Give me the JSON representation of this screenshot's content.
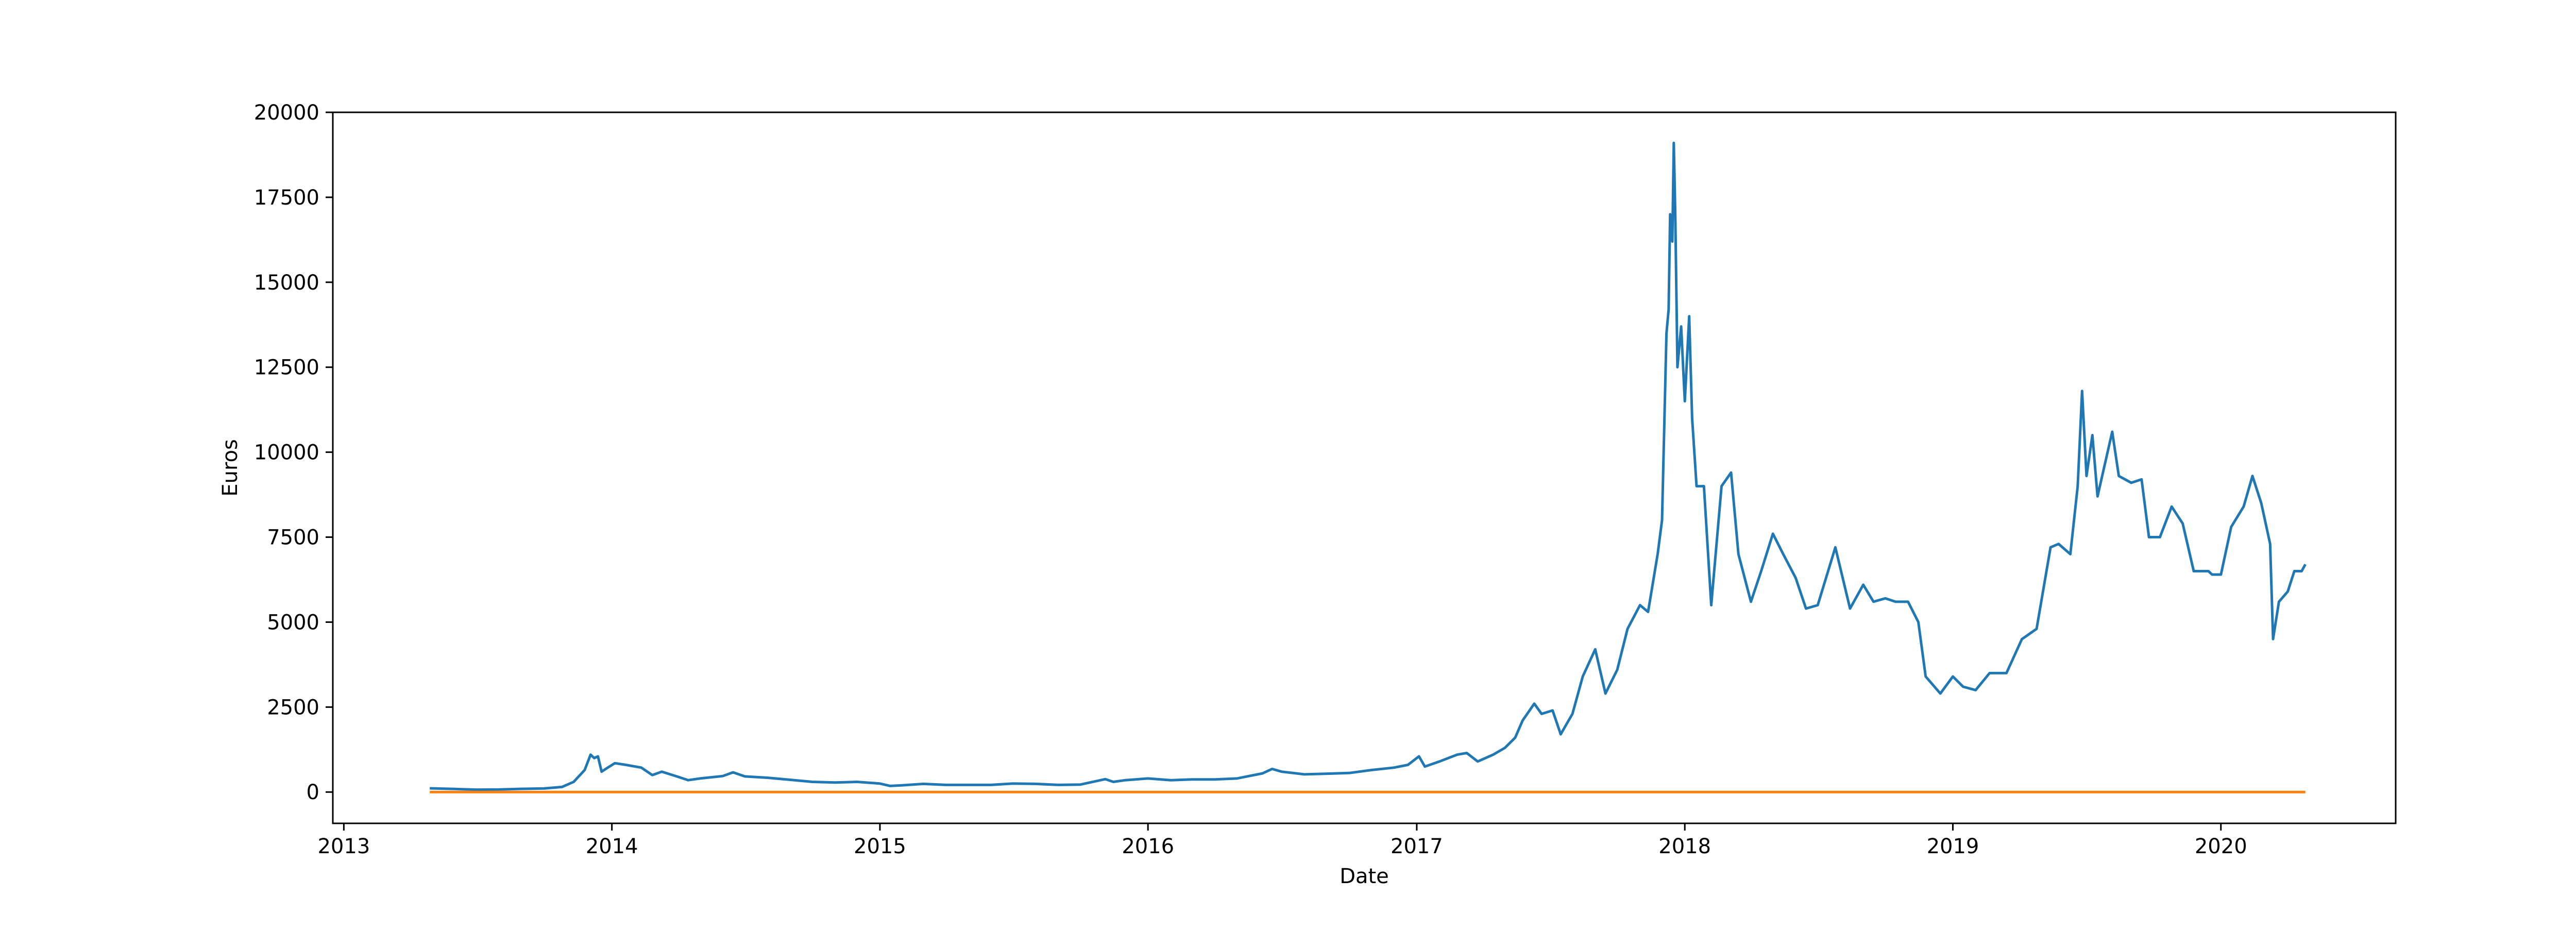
{
  "chart_data": {
    "type": "line",
    "title": "",
    "xlabel": "Date",
    "ylabel": "Euros",
    "x_axis_type": "date",
    "xlim": [
      "2012-12-17",
      "2020-08-26"
    ],
    "ylim": [
      -921,
      20000
    ],
    "x_ticks": [
      "2013",
      "2014",
      "2015",
      "2016",
      "2017",
      "2018",
      "2019",
      "2020"
    ],
    "y_ticks": [
      0,
      2500,
      5000,
      7500,
      10000,
      12500,
      15000,
      17500,
      20000
    ],
    "grid": false,
    "legend": "none",
    "series": [
      {
        "color": "#1f77b4",
        "points": [
          [
            "2013-04-28",
            110
          ],
          [
            "2013-06-01",
            90
          ],
          [
            "2013-07-01",
            70
          ],
          [
            "2013-08-01",
            75
          ],
          [
            "2013-09-01",
            95
          ],
          [
            "2013-10-01",
            105
          ],
          [
            "2013-10-25",
            150
          ],
          [
            "2013-11-10",
            300
          ],
          [
            "2013-11-25",
            650
          ],
          [
            "2013-12-03",
            1100
          ],
          [
            "2013-12-08",
            1000
          ],
          [
            "2013-12-13",
            1050
          ],
          [
            "2013-12-18",
            600
          ],
          [
            "2013-12-25",
            700
          ],
          [
            "2014-01-05",
            850
          ],
          [
            "2014-01-20",
            800
          ],
          [
            "2014-02-10",
            720
          ],
          [
            "2014-02-25",
            500
          ],
          [
            "2014-03-10",
            600
          ],
          [
            "2014-04-01",
            450
          ],
          [
            "2014-04-15",
            350
          ],
          [
            "2014-05-01",
            400
          ],
          [
            "2014-06-01",
            470
          ],
          [
            "2014-06-15",
            580
          ],
          [
            "2014-07-01",
            460
          ],
          [
            "2014-08-01",
            420
          ],
          [
            "2014-09-01",
            360
          ],
          [
            "2014-10-01",
            300
          ],
          [
            "2014-11-01",
            280
          ],
          [
            "2014-12-01",
            300
          ],
          [
            "2015-01-01",
            250
          ],
          [
            "2015-01-15",
            180
          ],
          [
            "2015-02-01",
            200
          ],
          [
            "2015-03-01",
            240
          ],
          [
            "2015-04-01",
            210
          ],
          [
            "2015-05-01",
            210
          ],
          [
            "2015-06-01",
            210
          ],
          [
            "2015-07-01",
            250
          ],
          [
            "2015-08-01",
            240
          ],
          [
            "2015-09-01",
            210
          ],
          [
            "2015-10-01",
            220
          ],
          [
            "2015-11-04",
            380
          ],
          [
            "2015-11-15",
            300
          ],
          [
            "2015-12-01",
            350
          ],
          [
            "2016-01-01",
            400
          ],
          [
            "2016-02-01",
            350
          ],
          [
            "2016-03-01",
            370
          ],
          [
            "2016-04-01",
            370
          ],
          [
            "2016-05-01",
            400
          ],
          [
            "2016-06-05",
            550
          ],
          [
            "2016-06-18",
            680
          ],
          [
            "2016-07-01",
            600
          ],
          [
            "2016-08-01",
            520
          ],
          [
            "2016-09-01",
            540
          ],
          [
            "2016-10-01",
            560
          ],
          [
            "2016-11-01",
            650
          ],
          [
            "2016-12-01",
            720
          ],
          [
            "2016-12-20",
            800
          ],
          [
            "2017-01-04",
            1050
          ],
          [
            "2017-01-12",
            750
          ],
          [
            "2017-02-01",
            900
          ],
          [
            "2017-02-25",
            1100
          ],
          [
            "2017-03-10",
            1150
          ],
          [
            "2017-03-25",
            900
          ],
          [
            "2017-04-15",
            1100
          ],
          [
            "2017-05-01",
            1300
          ],
          [
            "2017-05-15",
            1600
          ],
          [
            "2017-05-25",
            2100
          ],
          [
            "2017-06-10",
            2600
          ],
          [
            "2017-06-20",
            2300
          ],
          [
            "2017-07-05",
            2400
          ],
          [
            "2017-07-16",
            1700
          ],
          [
            "2017-08-01",
            2300
          ],
          [
            "2017-08-15",
            3400
          ],
          [
            "2017-09-01",
            4200
          ],
          [
            "2017-09-15",
            2900
          ],
          [
            "2017-10-01",
            3600
          ],
          [
            "2017-10-15",
            4800
          ],
          [
            "2017-11-01",
            5500
          ],
          [
            "2017-11-12",
            5300
          ],
          [
            "2017-11-25",
            7000
          ],
          [
            "2017-12-01",
            8000
          ],
          [
            "2017-12-07",
            13500
          ],
          [
            "2017-12-10",
            14200
          ],
          [
            "2017-12-12",
            17000
          ],
          [
            "2017-12-15",
            16200
          ],
          [
            "2017-12-17",
            19100
          ],
          [
            "2017-12-19",
            17000
          ],
          [
            "2017-12-22",
            12500
          ],
          [
            "2017-12-27",
            13700
          ],
          [
            "2018-01-01",
            11500
          ],
          [
            "2018-01-07",
            14000
          ],
          [
            "2018-01-11",
            11000
          ],
          [
            "2018-01-17",
            9000
          ],
          [
            "2018-01-27",
            9000
          ],
          [
            "2018-02-06",
            5500
          ],
          [
            "2018-02-20",
            9000
          ],
          [
            "2018-03-05",
            9400
          ],
          [
            "2018-03-15",
            7000
          ],
          [
            "2018-04-01",
            5600
          ],
          [
            "2018-04-15",
            6500
          ],
          [
            "2018-05-01",
            7600
          ],
          [
            "2018-05-15",
            7000
          ],
          [
            "2018-06-01",
            6300
          ],
          [
            "2018-06-15",
            5400
          ],
          [
            "2018-07-01",
            5500
          ],
          [
            "2018-07-25",
            7200
          ],
          [
            "2018-08-14",
            5400
          ],
          [
            "2018-09-01",
            6100
          ],
          [
            "2018-09-15",
            5600
          ],
          [
            "2018-10-01",
            5700
          ],
          [
            "2018-10-15",
            5600
          ],
          [
            "2018-11-01",
            5600
          ],
          [
            "2018-11-15",
            5000
          ],
          [
            "2018-11-25",
            3400
          ],
          [
            "2018-12-15",
            2900
          ],
          [
            "2019-01-01",
            3400
          ],
          [
            "2019-01-15",
            3100
          ],
          [
            "2019-02-01",
            3000
          ],
          [
            "2019-02-20",
            3500
          ],
          [
            "2019-03-15",
            3500
          ],
          [
            "2019-04-05",
            4500
          ],
          [
            "2019-04-25",
            4800
          ],
          [
            "2019-05-14",
            7200
          ],
          [
            "2019-05-25",
            7300
          ],
          [
            "2019-06-10",
            7000
          ],
          [
            "2019-06-20",
            9000
          ],
          [
            "2019-06-26",
            11800
          ],
          [
            "2019-07-02",
            9300
          ],
          [
            "2019-07-10",
            10500
          ],
          [
            "2019-07-17",
            8700
          ],
          [
            "2019-08-06",
            10600
          ],
          [
            "2019-08-15",
            9300
          ],
          [
            "2019-09-01",
            9100
          ],
          [
            "2019-09-15",
            9200
          ],
          [
            "2019-09-25",
            7500
          ],
          [
            "2019-10-10",
            7500
          ],
          [
            "2019-10-26",
            8400
          ],
          [
            "2019-11-10",
            7900
          ],
          [
            "2019-11-25",
            6500
          ],
          [
            "2019-12-15",
            6500
          ],
          [
            "2019-12-20",
            6400
          ],
          [
            "2020-01-01",
            6400
          ],
          [
            "2020-01-15",
            7800
          ],
          [
            "2020-02-01",
            8400
          ],
          [
            "2020-02-13",
            9300
          ],
          [
            "2020-02-25",
            8500
          ],
          [
            "2020-03-08",
            7300
          ],
          [
            "2020-03-12",
            4500
          ],
          [
            "2020-03-20",
            5600
          ],
          [
            "2020-04-01",
            5900
          ],
          [
            "2020-04-10",
            6500
          ],
          [
            "2020-04-20",
            6500
          ],
          [
            "2020-04-25",
            6700
          ]
        ]
      },
      {
        "color": "#ff7f0e",
        "points": [
          [
            "2013-04-28",
            0
          ],
          [
            "2020-04-25",
            0
          ]
        ]
      }
    ]
  }
}
